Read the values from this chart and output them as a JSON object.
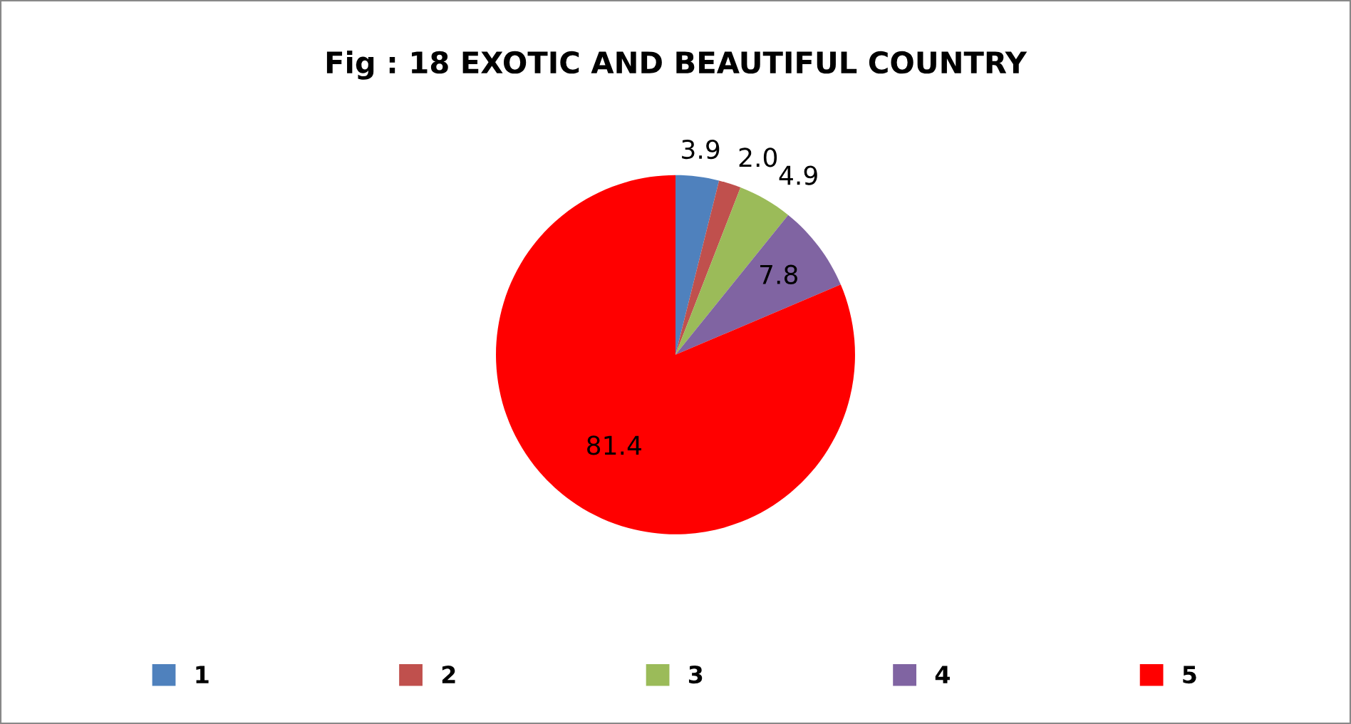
{
  "chart_data": {
    "type": "pie",
    "title": "Fig : 18 EXOTIC AND BEAUTIFUL COUNTRY",
    "categories": [
      "1",
      "2",
      "3",
      "4",
      "5"
    ],
    "values": [
      3.9,
      2.0,
      4.9,
      7.8,
      81.4
    ],
    "colors": [
      "#4f81bd",
      "#c0504d",
      "#9bbb59",
      "#8064a2",
      "#ff0000"
    ],
    "value_labels": [
      "3.9",
      "2.0",
      "4.9",
      "7.8",
      "81.4"
    ],
    "legend": "bottom"
  }
}
